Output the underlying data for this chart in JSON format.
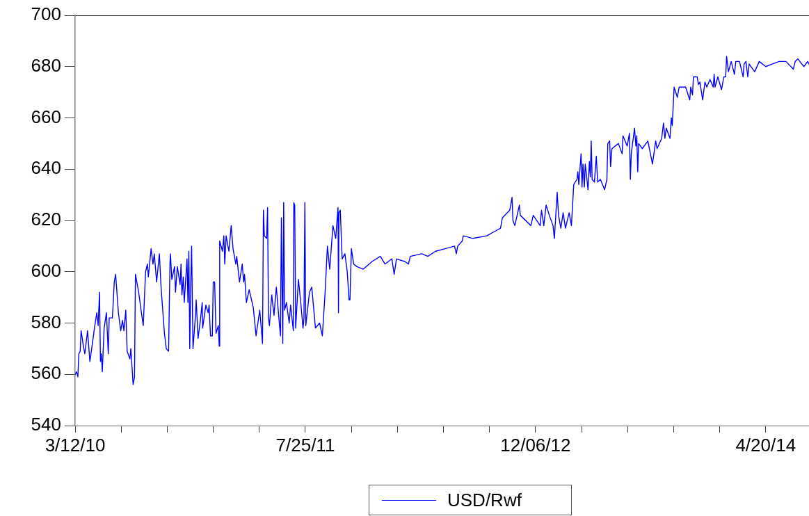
{
  "chart_data": {
    "type": "line",
    "x": [
      "2010-03-12",
      "2010-03-15",
      "2010-03-18",
      "2010-03-20",
      "2010-03-23",
      "2010-03-25",
      "2010-03-30",
      "2010-04-02",
      "2010-04-08",
      "2010-04-13",
      "2010-04-17",
      "2010-04-23",
      "2010-04-28",
      "2010-05-01",
      "2010-05-04",
      "2010-05-06",
      "2010-05-08",
      "2010-05-10",
      "2010-05-14",
      "2010-05-19",
      "2010-05-23",
      "2010-05-25",
      "2010-06-01",
      "2010-06-05",
      "2010-06-08",
      "2010-06-14",
      "2010-06-19",
      "2010-06-23",
      "2010-06-26",
      "2010-06-30",
      "2010-07-03",
      "2010-07-09",
      "2010-07-11",
      "2010-07-16",
      "2010-07-19",
      "2010-07-21",
      "2010-07-28",
      "2010-08-03",
      "2010-08-07",
      "2010-08-12",
      "2010-08-16",
      "2010-08-18",
      "2010-08-24",
      "2010-08-28",
      "2010-08-31",
      "2010-09-05",
      "2010-09-11",
      "2010-09-15",
      "2010-09-22",
      "2010-09-26",
      "2010-10-01",
      "2010-10-04",
      "2010-10-05",
      "2010-10-08",
      "2010-10-14",
      "2010-10-16",
      "2010-10-20",
      "2010-10-26",
      "2010-10-28",
      "2010-10-30",
      "2010-11-02",
      "2010-11-04",
      "2010-11-10",
      "2010-11-12",
      "2010-11-14",
      "2010-11-16",
      "2010-11-18",
      "2010-11-20",
      "2010-11-23",
      "2010-11-28",
      "2010-11-30",
      "2010-12-04",
      "2010-12-09",
      "2010-12-13",
      "2010-12-14",
      "2010-12-21",
      "2010-12-26",
      "2010-12-28",
      "2010-12-31",
      "2011-01-04",
      "2011-01-06",
      "2011-01-09",
      "2011-01-12",
      "2011-01-17",
      "2011-01-19",
      "2011-01-20",
      "2011-01-26",
      "2011-01-29",
      "2011-01-31",
      "2011-02-03",
      "2011-02-09",
      "2011-02-14",
      "2011-02-18",
      "2011-02-24",
      "2011-02-26",
      "2011-03-04",
      "2011-03-10",
      "2011-03-13",
      "2011-03-15",
      "2011-03-19",
      "2011-03-25",
      "2011-04-03",
      "2011-04-09",
      "2011-04-17",
      "2011-04-23",
      "2011-04-25",
      "2011-04-27",
      "2011-05-02",
      "2011-05-04",
      "2011-05-06",
      "2011-05-08",
      "2011-05-13",
      "2011-05-18",
      "2011-05-23",
      "2011-05-29",
      "2011-06-01",
      "2011-06-03",
      "2011-06-06",
      "2011-06-08",
      "2011-06-10",
      "2011-06-14",
      "2011-06-20",
      "2011-06-23",
      "2011-06-29",
      "2011-06-30",
      "2011-07-02",
      "2011-07-04",
      "2011-07-10",
      "2011-07-15",
      "2011-07-20",
      "2011-07-22",
      "2011-07-24",
      "2011-07-26",
      "2011-08-03",
      "2011-08-08",
      "2011-08-16",
      "2011-08-25",
      "2011-08-31",
      "2011-09-06",
      "2011-09-11",
      "2011-09-16",
      "2011-09-23",
      "2011-09-29",
      "2011-10-04",
      "2011-10-05",
      "2011-10-06",
      "2011-10-09",
      "2011-10-13",
      "2011-10-19",
      "2011-10-24",
      "2011-10-28",
      "2011-10-30",
      "2011-11-02",
      "2011-11-07",
      "2011-11-14",
      "2011-11-28",
      "2011-12-17",
      "2012-01-04",
      "2012-01-14",
      "2012-01-29",
      "2012-02-03",
      "2012-02-08",
      "2012-02-26",
      "2012-03-05",
      "2012-03-09",
      "2012-04-03",
      "2012-04-16",
      "2012-05-03",
      "2012-05-24",
      "2012-06-13",
      "2012-06-17",
      "2012-06-20",
      "2012-06-30",
      "2012-07-02",
      "2012-07-23",
      "2012-08-22",
      "2012-09-11",
      "2012-09-21",
      "2012-09-25",
      "2012-10-11",
      "2012-10-16",
      "2012-10-18",
      "2012-10-22",
      "2012-11-01",
      "2012-11-03",
      "2012-11-26",
      "2012-12-01",
      "2012-12-16",
      "2012-12-19",
      "2012-12-24",
      "2012-12-29",
      "2013-01-05",
      "2013-01-13",
      "2013-01-16",
      "2013-01-22",
      "2013-01-25",
      "2013-01-30",
      "2013-02-04",
      "2013-02-09",
      "2013-02-17",
      "2013-02-22",
      "2013-02-27",
      "2013-03-06",
      "2013-03-08",
      "2013-03-10",
      "2013-03-15",
      "2013-03-17",
      "2013-03-19",
      "2013-03-22",
      "2013-03-24",
      "2013-03-30",
      "2013-04-02",
      "2013-04-04",
      "2013-04-06",
      "2013-04-08",
      "2013-04-13",
      "2013-04-17",
      "2013-04-20",
      "2013-04-26",
      "2013-05-05",
      "2013-05-10",
      "2013-05-12",
      "2013-05-16",
      "2013-05-18",
      "2013-05-21",
      "2013-06-04",
      "2013-06-12",
      "2013-06-14",
      "2013-06-23",
      "2013-06-28",
      "2013-06-30",
      "2013-07-02",
      "2013-07-09",
      "2013-07-12",
      "2013-07-14",
      "2013-07-16",
      "2013-07-18",
      "2013-07-26",
      "2013-08-07",
      "2013-08-17",
      "2013-08-24",
      "2013-08-27",
      "2013-09-06",
      "2013-09-10",
      "2013-09-13",
      "2013-09-16",
      "2013-09-24",
      "2013-09-27",
      "2013-09-29",
      "2013-10-03",
      "2013-10-10",
      "2013-10-14",
      "2013-10-28",
      "2013-11-06",
      "2013-11-08",
      "2013-11-12",
      "2013-11-14",
      "2013-11-22",
      "2013-11-25",
      "2013-11-28",
      "2013-12-04",
      "2013-12-09",
      "2013-12-13",
      "2013-12-20",
      "2013-12-27",
      "2013-12-29",
      "2013-12-31",
      "2014-01-06",
      "2014-01-14",
      "2014-01-19",
      "2014-01-23",
      "2014-01-25",
      "2014-01-29",
      "2014-02-04",
      "2014-02-11",
      "2014-02-14",
      "2014-02-22",
      "2014-03-02",
      "2014-03-04",
      "2014-03-08",
      "2014-03-12",
      "2014-03-15",
      "2014-03-27",
      "2014-04-06",
      "2014-04-20",
      "2014-05-04",
      "2014-05-19",
      "2014-05-26",
      "2014-06-03",
      "2014-06-19",
      "2014-06-23",
      "2014-06-29",
      "2014-07-03",
      "2014-07-12",
      "2014-07-20",
      "2014-07-23"
    ],
    "series": [
      {
        "name": "USD/Rwf",
        "color": "#0000ff",
        "values": [
          560,
          561,
          559,
          568,
          569,
          577,
          571,
          568,
          577,
          565,
          570,
          578,
          584,
          579,
          592,
          565,
          568,
          561,
          578,
          584,
          568,
          582,
          582,
          596,
          599,
          584,
          577,
          581,
          577,
          585,
          569,
          566,
          570,
          556,
          559,
          599,
          592,
          584,
          579,
          600,
          603,
          598,
          609,
          603,
          607,
          596,
          607,
          593,
          576,
          570,
          569,
          603,
          607,
          597,
          602,
          592,
          602,
          595,
          603,
          591,
          598,
          588,
          605,
          588,
          608,
          570,
          594,
          610,
          570,
          582,
          589,
          574,
          581,
          588,
          578,
          587,
          584,
          587,
          575,
          575,
          596,
          596,
          576,
          579,
          571,
          612,
          608,
          614,
          603,
          614,
          608,
          618,
          609,
          603,
          606,
          596,
          603,
          596,
          599,
          588,
          593,
          586,
          575,
          585,
          572,
          624,
          614,
          613,
          625,
          582,
          579,
          591,
          583,
          594,
          581,
          575,
          621,
          572,
          627,
          585,
          588,
          580,
          587,
          577,
          627,
          626,
          578,
          597,
          588,
          578,
          582,
          627,
          579,
          592,
          594,
          578,
          580,
          575,
          592,
          610,
          601,
          618,
          613,
          625,
          584,
          623,
          624,
          605,
          607,
          600,
          589,
          589,
          609,
          603,
          602,
          601,
          604,
          606,
          603,
          605,
          599,
          605,
          604,
          603,
          606,
          607,
          606,
          608,
          609,
          610,
          607,
          610,
          612,
          614,
          613,
          614,
          616,
          617,
          621,
          624,
          629,
          620,
          618,
          626,
          622,
          618,
          622,
          618,
          624,
          618,
          626,
          622,
          618,
          613,
          631,
          622,
          617,
          623,
          617,
          623,
          618,
          634,
          636,
          639,
          634,
          646,
          633,
          642,
          633,
          642,
          632,
          643,
          637,
          651,
          636,
          635,
          645,
          635,
          636,
          632,
          636,
          650,
          651,
          641,
          648,
          650,
          646,
          653,
          649,
          654,
          636,
          646,
          656,
          649,
          653,
          639,
          650,
          648,
          651,
          642,
          651,
          648,
          652,
          658,
          652,
          656,
          652,
          660,
          657,
          672,
          668,
          672,
          672,
          667,
          672,
          669,
          676,
          676,
          673,
          674,
          667,
          674,
          672,
          675,
          672,
          677,
          672,
          676,
          671,
          676,
          676,
          684,
          678,
          682,
          677,
          682,
          682,
          676,
          681,
          682,
          676,
          681,
          678,
          682,
          680,
          681,
          682,
          682,
          682,
          679,
          682,
          683,
          682,
          680,
          682,
          681
        ]
      }
    ],
    "xlim": [
      "2010-03-12",
      "2014-07-23"
    ],
    "xticks": [
      {
        "value": "2010-03-12",
        "label": "3/12/10"
      },
      {
        "value": "2010-06-20",
        "label": null
      },
      {
        "value": "2010-09-28",
        "label": null
      },
      {
        "value": "2011-01-06",
        "label": null
      },
      {
        "value": "2011-04-16",
        "label": null
      },
      {
        "value": "2011-07-25",
        "label": "7/25/11"
      },
      {
        "value": "2011-11-02",
        "label": null
      },
      {
        "value": "2012-02-10",
        "label": null
      },
      {
        "value": "2012-05-20",
        "label": null
      },
      {
        "value": "2012-08-28",
        "label": null
      },
      {
        "value": "2012-12-06",
        "label": "12/06/12"
      },
      {
        "value": "2013-03-16",
        "label": null
      },
      {
        "value": "2013-06-24",
        "label": null
      },
      {
        "value": "2013-10-02",
        "label": null
      },
      {
        "value": "2014-01-10",
        "label": null
      },
      {
        "value": "2014-04-20",
        "label": "4/20/14"
      }
    ],
    "ylim": [
      540,
      700
    ],
    "yticks": [
      540,
      560,
      580,
      600,
      620,
      640,
      660,
      680,
      700
    ],
    "legend": "bottom"
  }
}
